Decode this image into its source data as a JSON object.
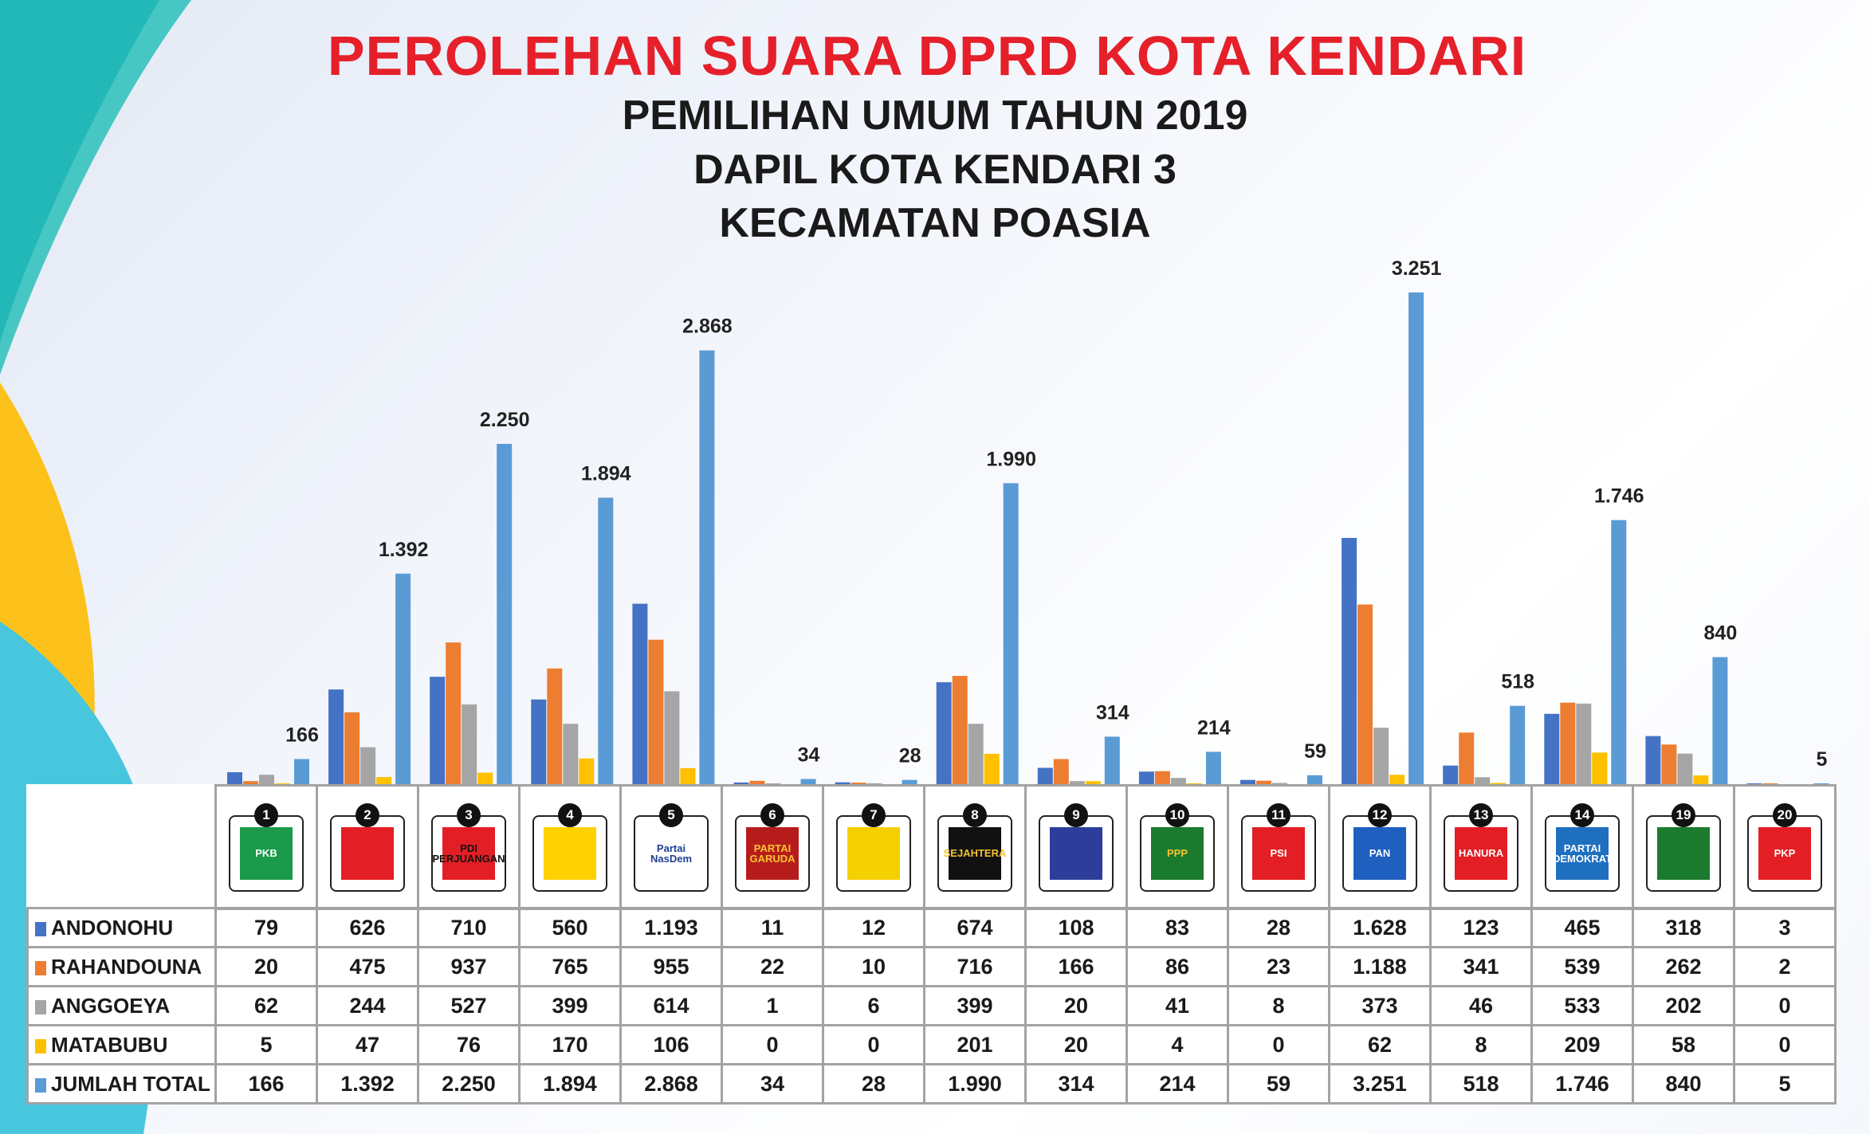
{
  "header": {
    "title": "PEROLEHAN SUARA DPRD KOTA KENDARI",
    "subtitle1": "PEMILIHAN UMUM TAHUN 2019",
    "subtitle2": "DAPIL KOTA KENDARI 3",
    "subtitle3": "KECAMATAN POASIA"
  },
  "parties": [
    {
      "num": "1",
      "logo_text": "PKB",
      "bg": "#1a9a4a",
      "fg": "#fff"
    },
    {
      "num": "2",
      "logo_text": "",
      "bg": "#e31e24",
      "fg": "#f5c400"
    },
    {
      "num": "3",
      "logo_text": "PDI PERJUANGAN",
      "bg": "#e31e24",
      "fg": "#111"
    },
    {
      "num": "4",
      "logo_text": "",
      "bg": "#ffd100",
      "fg": "#1a7a2e"
    },
    {
      "num": "5",
      "logo_text": "Partai NasDem",
      "bg": "#ffffff",
      "fg": "#1d3f94"
    },
    {
      "num": "6",
      "logo_text": "PARTAI GARUDA",
      "bg": "#b71c1c",
      "fg": "#f4c430"
    },
    {
      "num": "7",
      "logo_text": "",
      "bg": "#f5d000",
      "fg": "#1a7a2e"
    },
    {
      "num": "8",
      "logo_text": "SEJAHTERA",
      "bg": "#111111",
      "fg": "#f4c430"
    },
    {
      "num": "9",
      "logo_text": "",
      "bg": "#2c3e9a",
      "fg": "#e31e24"
    },
    {
      "num": "10",
      "logo_text": "PPP",
      "bg": "#1a7a2e",
      "fg": "#f4c430"
    },
    {
      "num": "11",
      "logo_text": "PSI",
      "bg": "#e31e24",
      "fg": "#fff"
    },
    {
      "num": "12",
      "logo_text": "PAN",
      "bg": "#1e5fbf",
      "fg": "#fff"
    },
    {
      "num": "13",
      "logo_text": "HANURA",
      "bg": "#e31e24",
      "fg": "#fff"
    },
    {
      "num": "14",
      "logo_text": "PARTAI DEMOKRAT",
      "bg": "#1e6fc0",
      "fg": "#fff"
    },
    {
      "num": "19",
      "logo_text": "",
      "bg": "#1a7a2e",
      "fg": "#f5e000"
    },
    {
      "num": "20",
      "logo_text": "PKP",
      "bg": "#e31e24",
      "fg": "#fff"
    }
  ],
  "chart_data": {
    "type": "bar",
    "title": "PEROLEHAN SUARA DPRD KOTA KENDARI",
    "categories": [
      "1",
      "2",
      "3",
      "4",
      "5",
      "6",
      "7",
      "8",
      "9",
      "10",
      "11",
      "12",
      "13",
      "14",
      "19",
      "20"
    ],
    "series": [
      {
        "name": "ANDONOHU",
        "color": "#4472c4",
        "values": [
          79,
          626,
          710,
          560,
          1193,
          11,
          12,
          674,
          108,
          83,
          28,
          1628,
          123,
          465,
          318,
          3
        ],
        "display": [
          "79",
          "626",
          "710",
          "560",
          "1.193",
          "11",
          "12",
          "674",
          "108",
          "83",
          "28",
          "1.628",
          "123",
          "465",
          "318",
          "3"
        ]
      },
      {
        "name": "RAHANDOUNA",
        "color": "#ed7d31",
        "values": [
          20,
          475,
          937,
          765,
          955,
          22,
          10,
          716,
          166,
          86,
          23,
          1188,
          341,
          539,
          262,
          2
        ],
        "display": [
          "20",
          "475",
          "937",
          "765",
          "955",
          "22",
          "10",
          "716",
          "166",
          "86",
          "23",
          "1.188",
          "341",
          "539",
          "262",
          "2"
        ]
      },
      {
        "name": "ANGGOEYA",
        "color": "#a5a5a5",
        "values": [
          62,
          244,
          527,
          399,
          614,
          1,
          6,
          399,
          20,
          41,
          8,
          373,
          46,
          533,
          202,
          0
        ],
        "display": [
          "62",
          "244",
          "527",
          "399",
          "614",
          "1",
          "6",
          "399",
          "20",
          "41",
          "8",
          "373",
          "46",
          "533",
          "202",
          "0"
        ]
      },
      {
        "name": "MATABUBU",
        "color": "#ffc000",
        "values": [
          5,
          47,
          76,
          170,
          106,
          0,
          0,
          201,
          20,
          4,
          0,
          62,
          8,
          209,
          58,
          0
        ],
        "display": [
          "5",
          "47",
          "76",
          "170",
          "106",
          "0",
          "0",
          "201",
          "20",
          "4",
          "0",
          "62",
          "8",
          "209",
          "58",
          "0"
        ]
      },
      {
        "name": "JUMLAH TOTAL",
        "color": "#5b9bd5",
        "values": [
          166,
          1392,
          2250,
          1894,
          2868,
          34,
          28,
          1990,
          314,
          214,
          59,
          3251,
          518,
          1746,
          840,
          5
        ],
        "display": [
          "166",
          "1.392",
          "2.250",
          "1.894",
          "2.868",
          "34",
          "28",
          "1.990",
          "314",
          "214",
          "59",
          "3.251",
          "518",
          "1.746",
          "840",
          "5"
        ]
      }
    ],
    "ylim": [
      0,
      3300
    ],
    "grid": false,
    "legend": "table-left"
  }
}
